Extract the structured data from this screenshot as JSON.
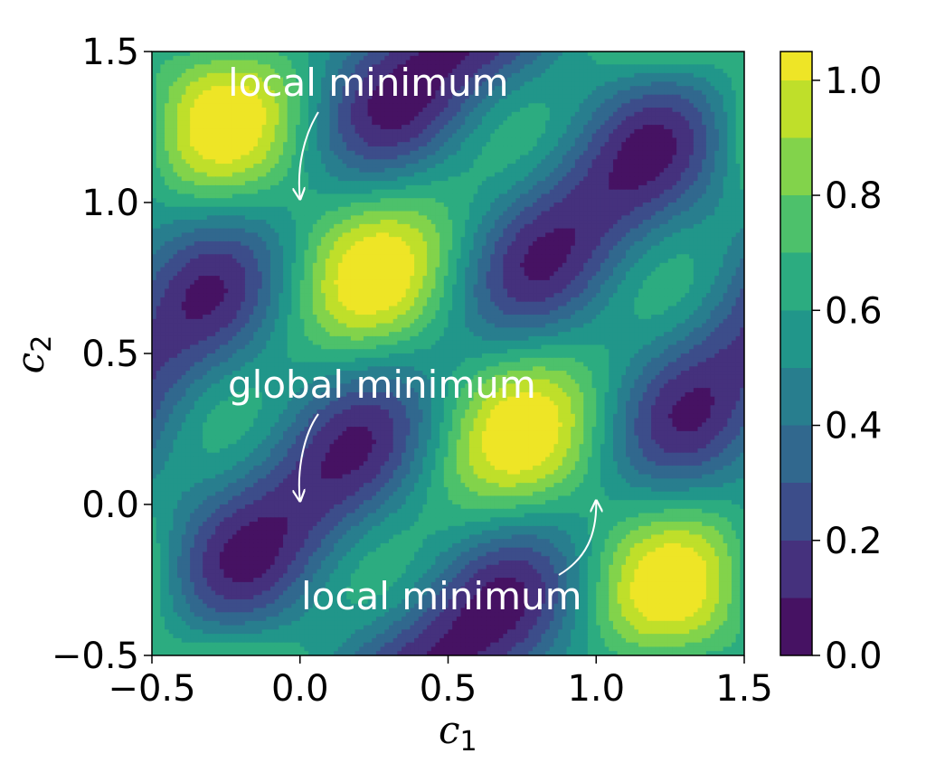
{
  "chart_data": {
    "type": "heatmap",
    "subtype": "filled-contour",
    "xlabel": "c",
    "xlabel_subscript": "1",
    "ylabel": "c",
    "ylabel_subscript": "2",
    "xlim": [
      -0.5,
      1.5
    ],
    "ylim": [
      -0.5,
      1.5
    ],
    "xticks": [
      -0.5,
      0.0,
      0.5,
      1.0,
      1.5
    ],
    "xtick_labels": [
      "−0.5",
      "0.0",
      "0.5",
      "1.0",
      "1.5"
    ],
    "yticks": [
      -0.5,
      0.0,
      0.5,
      1.0,
      1.5
    ],
    "ytick_labels": [
      "−0.5",
      "0.0",
      "0.5",
      "1.0",
      "1.5"
    ],
    "colormap": "viridis",
    "contour_levels": [
      0.0,
      0.1,
      0.2,
      0.3,
      0.4,
      0.5,
      0.6,
      0.7,
      0.8,
      0.9,
      1.0,
      1.05
    ],
    "colorbar": {
      "range": [
        0.0,
        1.05
      ],
      "ticks": [
        0.0,
        0.2,
        0.4,
        0.6,
        0.8,
        1.0
      ],
      "tick_labels": [
        "0.0",
        "0.2",
        "0.4",
        "0.6",
        "0.8",
        "1.0"
      ]
    },
    "grid": false,
    "annotations": [
      {
        "text": "local minimum",
        "point": [
          0.0,
          1.0
        ]
      },
      {
        "text": "global minimum",
        "point": [
          0.0,
          0.0
        ]
      },
      {
        "text": "local minimum",
        "point": [
          1.0,
          0.0
        ]
      }
    ]
  }
}
